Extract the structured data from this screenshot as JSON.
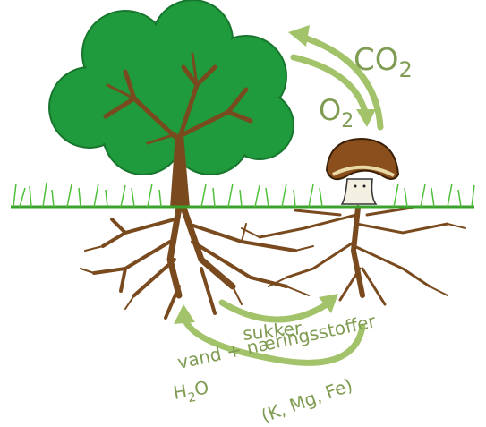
{
  "labels": {
    "co2": {
      "base": "CO",
      "sub": "2"
    },
    "o2": {
      "base": "O",
      "sub": "2"
    },
    "sugar": "sukker",
    "water_nutrients": "vand + næringsstoffer",
    "h2o": {
      "base": "H",
      "sub": "2",
      "tail": "O"
    },
    "minerals": "(K, Mg, Fe)"
  }
}
